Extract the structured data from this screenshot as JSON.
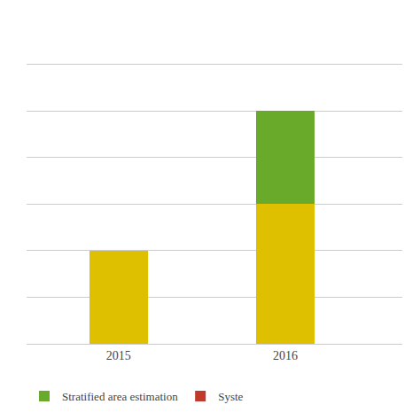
{
  "chart_data": {
    "type": "bar",
    "stacked": true,
    "categories": [
      "2015",
      "2016"
    ],
    "series": [
      {
        "color": "#dfc000",
        "values": [
          2,
          3
        ]
      },
      {
        "name": "Stratified area estimation",
        "color": "#6aaa2a",
        "values": [
          0,
          2
        ]
      },
      {
        "name": "Syste",
        "color": "#c0392b",
        "values": [
          null,
          null
        ]
      }
    ],
    "ylim": [
      0,
      7
    ],
    "yticks": [
      1,
      2,
      3,
      4,
      5,
      6,
      7
    ],
    "grid": true,
    "tick_labels": "x",
    "legend": "lower left"
  }
}
